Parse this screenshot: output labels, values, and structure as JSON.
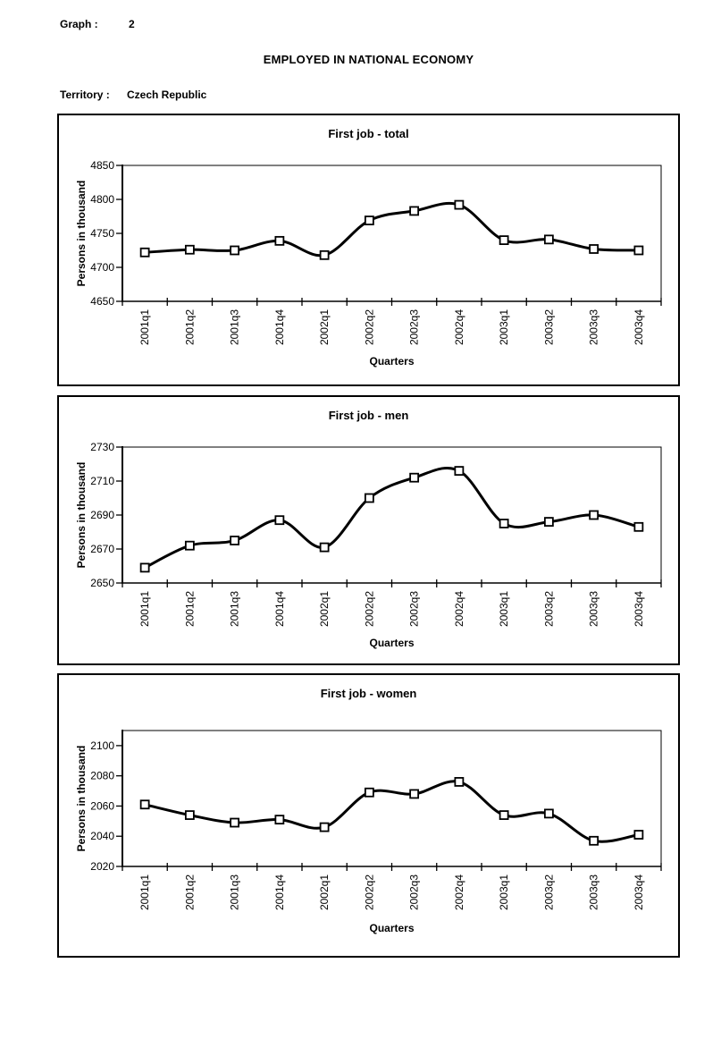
{
  "header": {
    "graph_label": "Graph :",
    "graph_number": "2",
    "title": "EMPLOYED IN NATIONAL ECONOMY",
    "territory_label": "Territory :",
    "territory_value": "Czech Republic"
  },
  "chart_data": [
    {
      "type": "line",
      "title": "First job - total",
      "xlabel": "Quarters",
      "ylabel": "Persons in thousand",
      "categories": [
        "2001q1",
        "2001q2",
        "2001q3",
        "2001q4",
        "2002q1",
        "2002q2",
        "2002q3",
        "2002q4",
        "2003q1",
        "2003q2",
        "2003q3",
        "2003q4"
      ],
      "values": [
        4722,
        4726,
        4725,
        4739,
        4718,
        4769,
        4783,
        4792,
        4740,
        4741,
        4727,
        4725
      ],
      "ylim": [
        4650,
        4850
      ],
      "yticks": [
        4650,
        4700,
        4750,
        4800,
        4850
      ],
      "grid": false,
      "legend": "none",
      "line_color": "#000000",
      "marker_fill": "#ffffff",
      "marker_shape": "square"
    },
    {
      "type": "line",
      "title": "First job - men",
      "xlabel": "Quarters",
      "ylabel": "Persons in thousand",
      "categories": [
        "2001q1",
        "2001q2",
        "2001q3",
        "2001q4",
        "2002q1",
        "2002q2",
        "2002q3",
        "2002q4",
        "2003q1",
        "2003q2",
        "2003q3",
        "2003q4"
      ],
      "values": [
        2659,
        2672,
        2675,
        2687,
        2671,
        2700,
        2712,
        2716,
        2685,
        2686,
        2690,
        2683
      ],
      "ylim": [
        2650,
        2730
      ],
      "yticks": [
        2650,
        2670,
        2690,
        2710,
        2730
      ],
      "grid": false,
      "legend": "none",
      "line_color": "#000000",
      "marker_fill": "#ffffff",
      "marker_shape": "square"
    },
    {
      "type": "line",
      "title": "First job - women",
      "xlabel": "Quarters",
      "ylabel": "Persons in thousand",
      "categories": [
        "2001q1",
        "2001q2",
        "2001q3",
        "2001q4",
        "2002q1",
        "2002q2",
        "2002q3",
        "2002q4",
        "2003q1",
        "2003q2",
        "2003q3",
        "2003q4"
      ],
      "values": [
        2061,
        2054,
        2049,
        2051,
        2046,
        2069,
        2068,
        2076,
        2054,
        2055,
        2037,
        2041
      ],
      "ylim": [
        2020,
        2110
      ],
      "yticks": [
        2020,
        2040,
        2060,
        2080,
        2100
      ],
      "grid": false,
      "legend": "none",
      "line_color": "#000000",
      "marker_fill": "#ffffff",
      "marker_shape": "square"
    }
  ]
}
